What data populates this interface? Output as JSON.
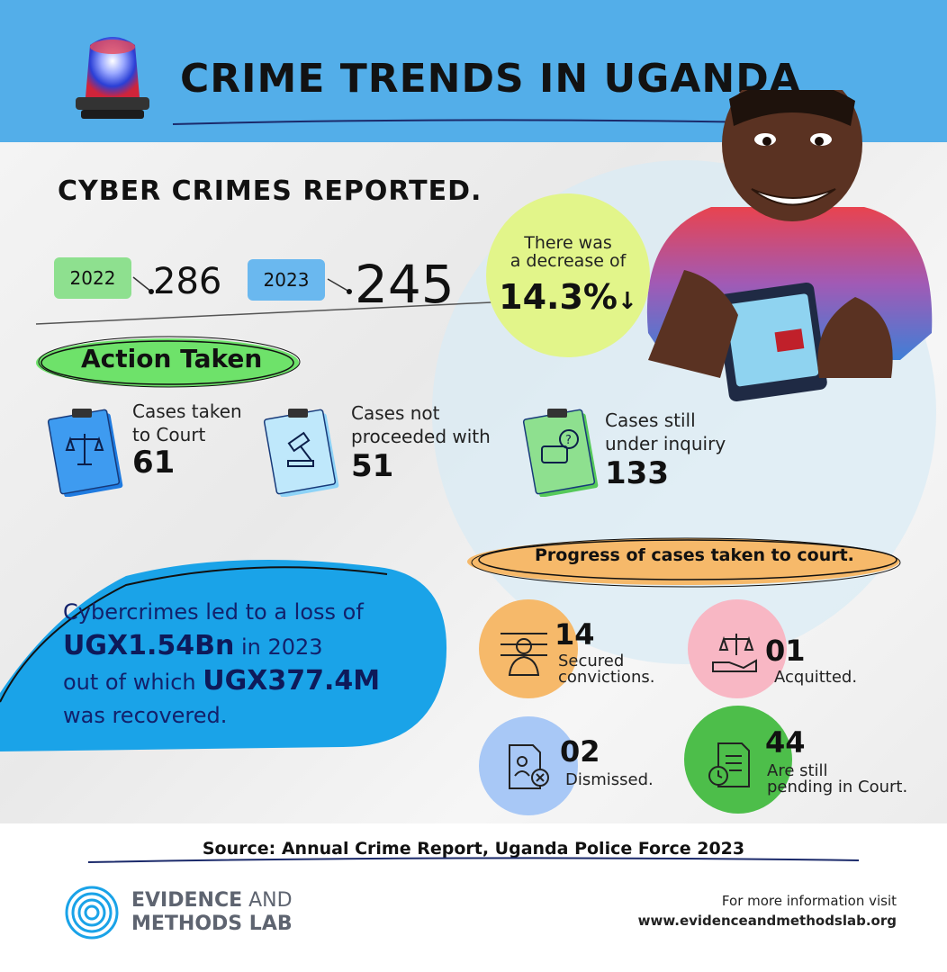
{
  "header": {
    "title": "CRIME TRENDS IN UGANDA"
  },
  "section": {
    "title": "CYBER CRIMES REPORTED."
  },
  "reported": {
    "year_a": "2022",
    "value_a": "286",
    "year_b": "2023",
    "value_b": "245"
  },
  "decrease": {
    "line1": "There was",
    "line2": "a decrease of",
    "value": "14.3%"
  },
  "action": {
    "title": "Action Taken",
    "items": [
      {
        "label1": "Cases taken",
        "label2": "to Court",
        "value": "61"
      },
      {
        "label1": "Cases not",
        "label2": "proceeded with",
        "value": "51"
      },
      {
        "label1": "Cases still",
        "label2": "under inquiry",
        "value": "133"
      }
    ]
  },
  "loss": {
    "line1": "Cybercrimes led to a loss of",
    "amount": "UGX1.54Bn",
    "line2_suffix": " in 2023",
    "line3_prefix": "out of which ",
    "recovered": "UGX377.4M",
    "line4": "was recovered."
  },
  "progress": {
    "title": "Progress of cases taken to court.",
    "items": [
      {
        "value": "14",
        "label1": "Secured",
        "label2": "convictions."
      },
      {
        "value": "01",
        "label1": "Acquitted.",
        "label2": ""
      },
      {
        "value": "02",
        "label1": "Dismissed.",
        "label2": ""
      },
      {
        "value": "44",
        "label1": "Are still",
        "label2": "pending in Court."
      }
    ]
  },
  "footer": {
    "source": "Source: Annual Crime Report, Uganda Police Force 2023",
    "logo_line1_bold": "EVIDENCE",
    "logo_line1_thin": " AND",
    "logo_line2": "METHODS LAB",
    "more_line1": "For more information visit",
    "more_line2": "www.evidenceandmethodslab.org"
  },
  "colors": {
    "header_bg": "#53aee9",
    "badge_2022": "#8ee08f",
    "badge_2023": "#6ab8ef",
    "decrease_circle": "#e2f58a",
    "loss_blob": "#1aa3e8",
    "progress_pill": "#f6b96a"
  },
  "icons": [
    "siren-icon",
    "scales-icon",
    "gavel-icon",
    "question-chat-icon",
    "prisoner-icon",
    "justice-hand-icon",
    "dismissed-document-icon",
    "pending-document-icon",
    "fingerprint-logo-icon"
  ]
}
